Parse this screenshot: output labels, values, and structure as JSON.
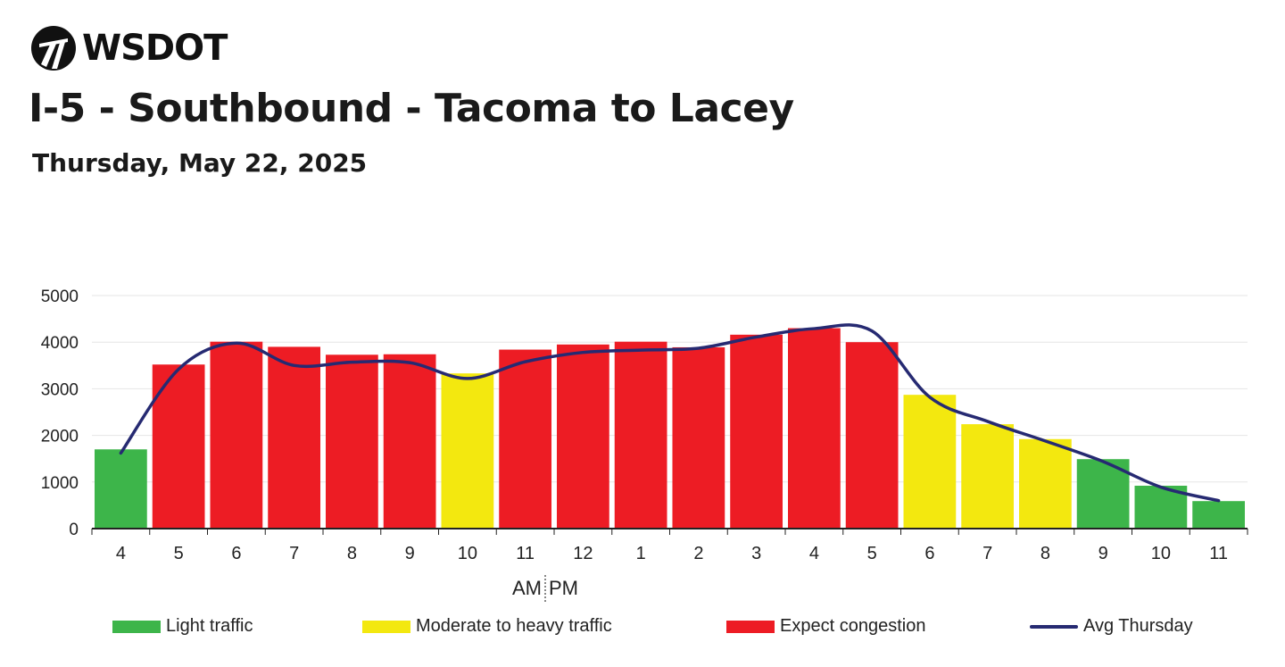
{
  "brand": {
    "name": "WSDOT"
  },
  "header": {
    "title": "I-5 - Southbound - Tacoma to Lacey",
    "subtitle": "Thursday, May 22, 2025"
  },
  "colors": {
    "light": "#3db54a",
    "moderate": "#f3e80f",
    "congestion": "#ed1c24",
    "avg_line": "#262a72",
    "grid": "#e6e6e6",
    "axis": "#222222"
  },
  "chart_data": {
    "type": "bar",
    "categories": [
      "4",
      "5",
      "6",
      "7",
      "8",
      "9",
      "10",
      "11",
      "12",
      "1",
      "2",
      "3",
      "4",
      "5",
      "6",
      "7",
      "8",
      "9",
      "10",
      "11"
    ],
    "series": [
      {
        "name": "",
        "values": [
          1700,
          3520,
          4010,
          3900,
          3730,
          3740,
          3330,
          3840,
          3950,
          4010,
          3890,
          4160,
          4300,
          4000,
          2870,
          2240,
          1920,
          1490,
          920,
          590
        ],
        "levels": [
          "light",
          "congestion",
          "congestion",
          "congestion",
          "congestion",
          "congestion",
          "moderate",
          "congestion",
          "congestion",
          "congestion",
          "congestion",
          "congestion",
          "congestion",
          "congestion",
          "moderate",
          "moderate",
          "moderate",
          "light",
          "light",
          "light"
        ]
      },
      {
        "name": "Avg Thursday",
        "type": "line",
        "values": [
          1620,
          3420,
          3980,
          3500,
          3570,
          3560,
          3220,
          3580,
          3780,
          3830,
          3870,
          4110,
          4290,
          4240,
          2820,
          2300,
          1880,
          1440,
          890,
          600
        ]
      }
    ],
    "xlabel": "AM|PM",
    "am_label": "AM",
    "pm_label": "PM",
    "ylabel": "",
    "ylim": [
      0,
      5000
    ],
    "yticks": [
      "0",
      "1000",
      "2000",
      "3000",
      "4000",
      "5000"
    ],
    "grid": true,
    "legend_position": "bottom",
    "legend": [
      {
        "label": "Light traffic",
        "kind": "bar",
        "level": "light"
      },
      {
        "label": "Moderate to heavy traffic",
        "kind": "bar",
        "level": "moderate"
      },
      {
        "label": "Expect congestion",
        "kind": "bar",
        "level": "congestion"
      },
      {
        "label": "Avg Thursday",
        "kind": "line",
        "level": "avg_line"
      }
    ]
  }
}
